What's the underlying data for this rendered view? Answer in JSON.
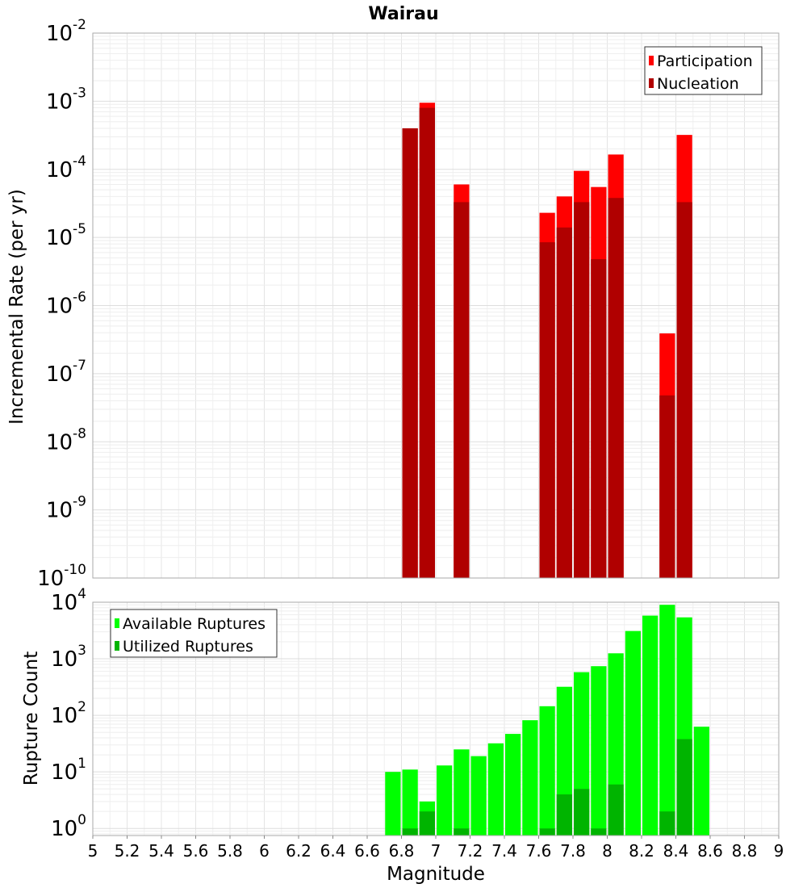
{
  "chart_data": [
    {
      "type": "bar",
      "title": "Wairau",
      "ylabel": "Incremental Rate (per yr)",
      "xlabel": "",
      "y_scale": "log",
      "ylim": [
        1e-10,
        0.01
      ],
      "xlim": [
        5,
        9
      ],
      "bin_width": 0.1,
      "y_tick_labels": [
        {
          "base": "10",
          "exp": "-10",
          "value": 1e-10
        },
        {
          "base": "10",
          "exp": "-9",
          "value": 1e-09
        },
        {
          "base": "10",
          "exp": "-8",
          "value": 1e-08
        },
        {
          "base": "10",
          "exp": "-7",
          "value": 1e-07
        },
        {
          "base": "10",
          "exp": "-6",
          "value": 1e-06
        },
        {
          "base": "10",
          "exp": "-5",
          "value": 1e-05
        },
        {
          "base": "10",
          "exp": "-4",
          "value": 0.0001
        },
        {
          "base": "10",
          "exp": "-3",
          "value": 0.001
        },
        {
          "base": "10",
          "exp": "-2",
          "value": 0.01
        }
      ],
      "legend": {
        "placement": "top-right",
        "entries": [
          "Participation",
          "Nucleation"
        ]
      },
      "series": [
        {
          "name": "Participation",
          "color": "#ff0000",
          "x": [
            6.85,
            6.95,
            7.15,
            7.65,
            7.75,
            7.85,
            7.95,
            8.05,
            8.35,
            8.45
          ],
          "values": [
            0.0004,
            0.00095,
            6e-05,
            2.3e-05,
            4e-05,
            9.5e-05,
            5.5e-05,
            0.000165,
            3.9e-07,
            0.00032
          ]
        },
        {
          "name": "Nucleation",
          "color": "#b00000",
          "x": [
            6.85,
            6.95,
            7.15,
            7.65,
            7.75,
            7.85,
            7.95,
            8.05,
            8.35,
            8.45
          ],
          "values": [
            0.0004,
            0.0008,
            3.3e-05,
            8.5e-06,
            1.4e-05,
            3.3e-05,
            4.8e-06,
            3.8e-05,
            4.8e-08,
            3.3e-05
          ]
        }
      ]
    },
    {
      "type": "bar",
      "title": "",
      "ylabel": "Rupture Count",
      "xlabel": "Magnitude",
      "y_scale": "log",
      "ylim": [
        0.75,
        10000
      ],
      "xlim": [
        5,
        9
      ],
      "bin_width": 0.1,
      "x_tick_labels": [
        "5",
        "5.2",
        "5.4",
        "5.6",
        "5.8",
        "6",
        "6.2",
        "6.4",
        "6.6",
        "6.8",
        "7",
        "7.2",
        "7.4",
        "7.6",
        "7.8",
        "8",
        "8.2",
        "8.4",
        "8.6",
        "8.8",
        "9"
      ],
      "y_tick_labels": [
        {
          "base": "10",
          "exp": "0",
          "value": 1
        },
        {
          "base": "10",
          "exp": "1",
          "value": 10
        },
        {
          "base": "10",
          "exp": "2",
          "value": 100
        },
        {
          "base": "10",
          "exp": "3",
          "value": 1000
        },
        {
          "base": "10",
          "exp": "4",
          "value": 10000
        }
      ],
      "legend": {
        "placement": "top-left",
        "entries": [
          "Available Ruptures",
          "Utilized Ruptures"
        ]
      },
      "series": [
        {
          "name": "Available Ruptures",
          "color": "#00ff00",
          "x": [
            6.75,
            6.85,
            6.95,
            7.05,
            7.15,
            7.25,
            7.35,
            7.45,
            7.55,
            7.65,
            7.75,
            7.85,
            7.95,
            8.05,
            8.15,
            8.25,
            8.35,
            8.45,
            8.55
          ],
          "values": [
            10,
            11,
            3,
            13,
            25,
            19,
            32,
            47,
            82,
            145,
            320,
            580,
            740,
            1250,
            3100,
            5800,
            9000,
            5400,
            63
          ]
        },
        {
          "name": "Utilized Ruptures",
          "color": "#00b400",
          "x": [
            6.85,
            6.95,
            7.15,
            7.65,
            7.75,
            7.85,
            7.95,
            8.05,
            8.35,
            8.45
          ],
          "values": [
            1,
            2,
            1,
            1,
            4,
            5,
            1,
            6,
            2,
            38
          ]
        }
      ]
    }
  ]
}
